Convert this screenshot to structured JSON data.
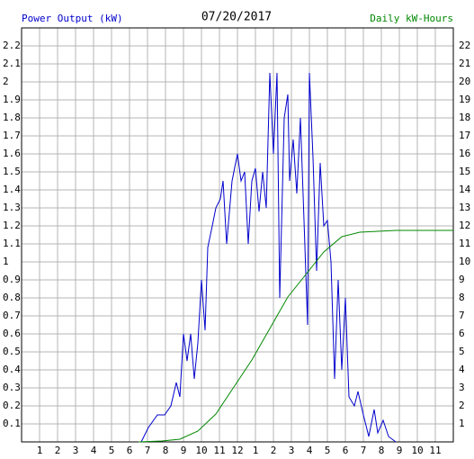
{
  "chart_data": {
    "type": "line",
    "title": "07/20/2017",
    "ylabel": "Power Output (kW)",
    "y2label": "Daily kW-Hours",
    "grid": true,
    "xlim": [
      0,
      24
    ],
    "xticks": [
      1,
      2,
      3,
      4,
      5,
      6,
      7,
      8,
      9,
      10,
      11,
      12,
      {
        "value": 13,
        "label": "1"
      },
      {
        "value": 14,
        "label": "2"
      },
      {
        "value": 15,
        "label": "3"
      },
      {
        "value": 16,
        "label": "4"
      },
      {
        "value": 17,
        "label": "5"
      },
      {
        "value": 18,
        "label": "6"
      },
      {
        "value": 19,
        "label": "7"
      },
      {
        "value": 20,
        "label": "8"
      },
      {
        "value": 21,
        "label": "9"
      },
      {
        "value": 22,
        "label": "10"
      },
      {
        "value": 23,
        "label": "11"
      }
    ],
    "ylim": [
      0,
      2.3
    ],
    "yticks": [
      0.1,
      0.2,
      0.3,
      0.4,
      0.5,
      0.6,
      0.7,
      0.8,
      0.9,
      1.0,
      1.1,
      1.2,
      1.3,
      1.4,
      1.5,
      1.6,
      1.7,
      1.8,
      1.9,
      2.0,
      2.1,
      2.2
    ],
    "y2lim": [
      0,
      23
    ],
    "y2ticks": [
      1,
      2,
      3,
      4,
      5,
      6,
      7,
      8,
      9,
      10,
      11,
      12,
      13,
      14,
      15,
      16,
      17,
      18,
      19,
      20,
      21,
      22
    ],
    "series": [
      {
        "name": "Power Output (kW)",
        "color": "#0000cc",
        "x": [
          6.65,
          7.05,
          7.55,
          7.95,
          8.3,
          8.6,
          8.8,
          9.0,
          9.2,
          9.4,
          9.6,
          9.8,
          10.0,
          10.2,
          10.35,
          10.6,
          10.8,
          11.05,
          11.2,
          11.4,
          11.7,
          12.0,
          12.2,
          12.4,
          12.6,
          12.8,
          13.0,
          13.2,
          13.4,
          13.6,
          13.8,
          14.0,
          14.2,
          14.35,
          14.6,
          14.8,
          14.9,
          15.1,
          15.3,
          15.5,
          15.7,
          15.9,
          16.0,
          16.2,
          16.4,
          16.6,
          16.8,
          17.0,
          17.2,
          17.4,
          17.6,
          17.8,
          18.0,
          18.2,
          18.5,
          18.7,
          19.0,
          19.3,
          19.6,
          19.8,
          20.1,
          20.4,
          20.8
        ],
        "values": [
          0,
          0.08,
          0.15,
          0.15,
          0.2,
          0.33,
          0.25,
          0.6,
          0.45,
          0.6,
          0.35,
          0.55,
          0.9,
          0.62,
          1.08,
          1.2,
          1.3,
          1.35,
          1.45,
          1.1,
          1.45,
          1.6,
          1.45,
          1.5,
          1.1,
          1.45,
          1.52,
          1.28,
          1.5,
          1.3,
          2.05,
          1.6,
          2.05,
          0.8,
          1.8,
          1.93,
          1.45,
          1.68,
          1.38,
          1.8,
          1.23,
          0.65,
          2.05,
          1.58,
          0.95,
          1.55,
          1.2,
          1.23,
          1.0,
          0.35,
          0.9,
          0.4,
          0.8,
          0.25,
          0.2,
          0.28,
          0.15,
          0.03,
          0.18,
          0.05,
          0.12,
          0.03,
          0
        ]
      },
      {
        "name": "Daily kW-Hours",
        "color": "#008800",
        "axis": "y2",
        "x": [
          6.5,
          7.8,
          8.8,
          9.8,
          10.8,
          11.8,
          12.8,
          13.8,
          14.8,
          15.8,
          16.8,
          17.8,
          18.8,
          20.8,
          24
        ],
        "values": [
          0,
          0.05,
          0.15,
          0.6,
          1.55,
          3.05,
          4.55,
          6.3,
          8.05,
          9.3,
          10.55,
          11.4,
          11.65,
          11.75,
          11.75
        ]
      }
    ]
  }
}
